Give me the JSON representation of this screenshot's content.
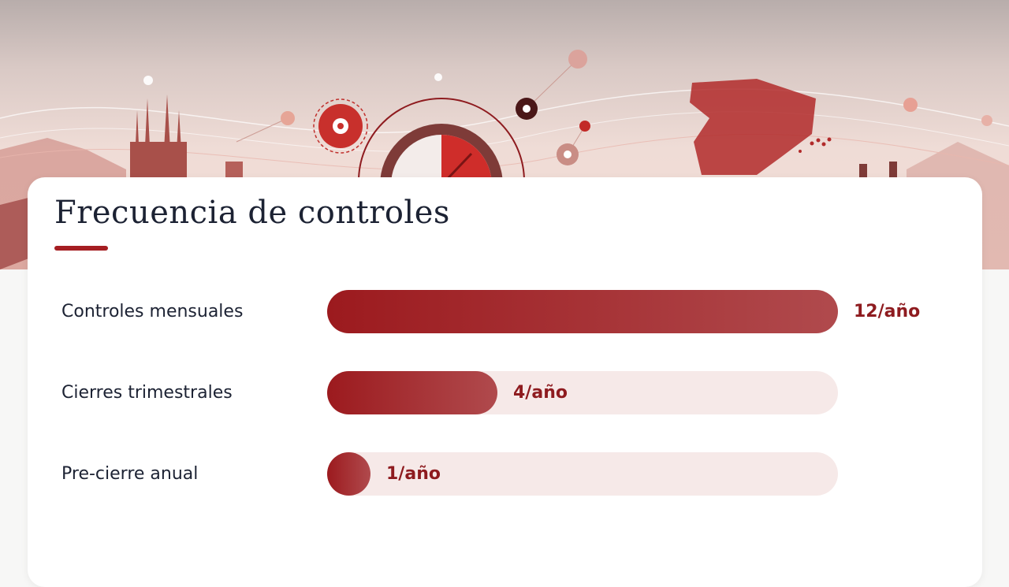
{
  "title": "Frecuencia de controles",
  "colors": {
    "accent": "#a51e22",
    "bar_start": "#9c1a1e",
    "bar_end": "#b04a4d",
    "track": "#f6e9e8",
    "text": "#1c2233",
    "value_text": "#8e1b1f"
  },
  "chart_data": {
    "type": "bar",
    "orientation": "horizontal",
    "title": "Frecuencia de controles",
    "categories": [
      "Controles mensuales",
      "Cierres trimestrales",
      "Pre-cierre anual"
    ],
    "values": [
      12,
      4,
      1
    ],
    "value_labels": [
      "12/año",
      "4/año",
      "1/año"
    ],
    "xlim": [
      0,
      12
    ],
    "grid": false,
    "legend": "none"
  }
}
